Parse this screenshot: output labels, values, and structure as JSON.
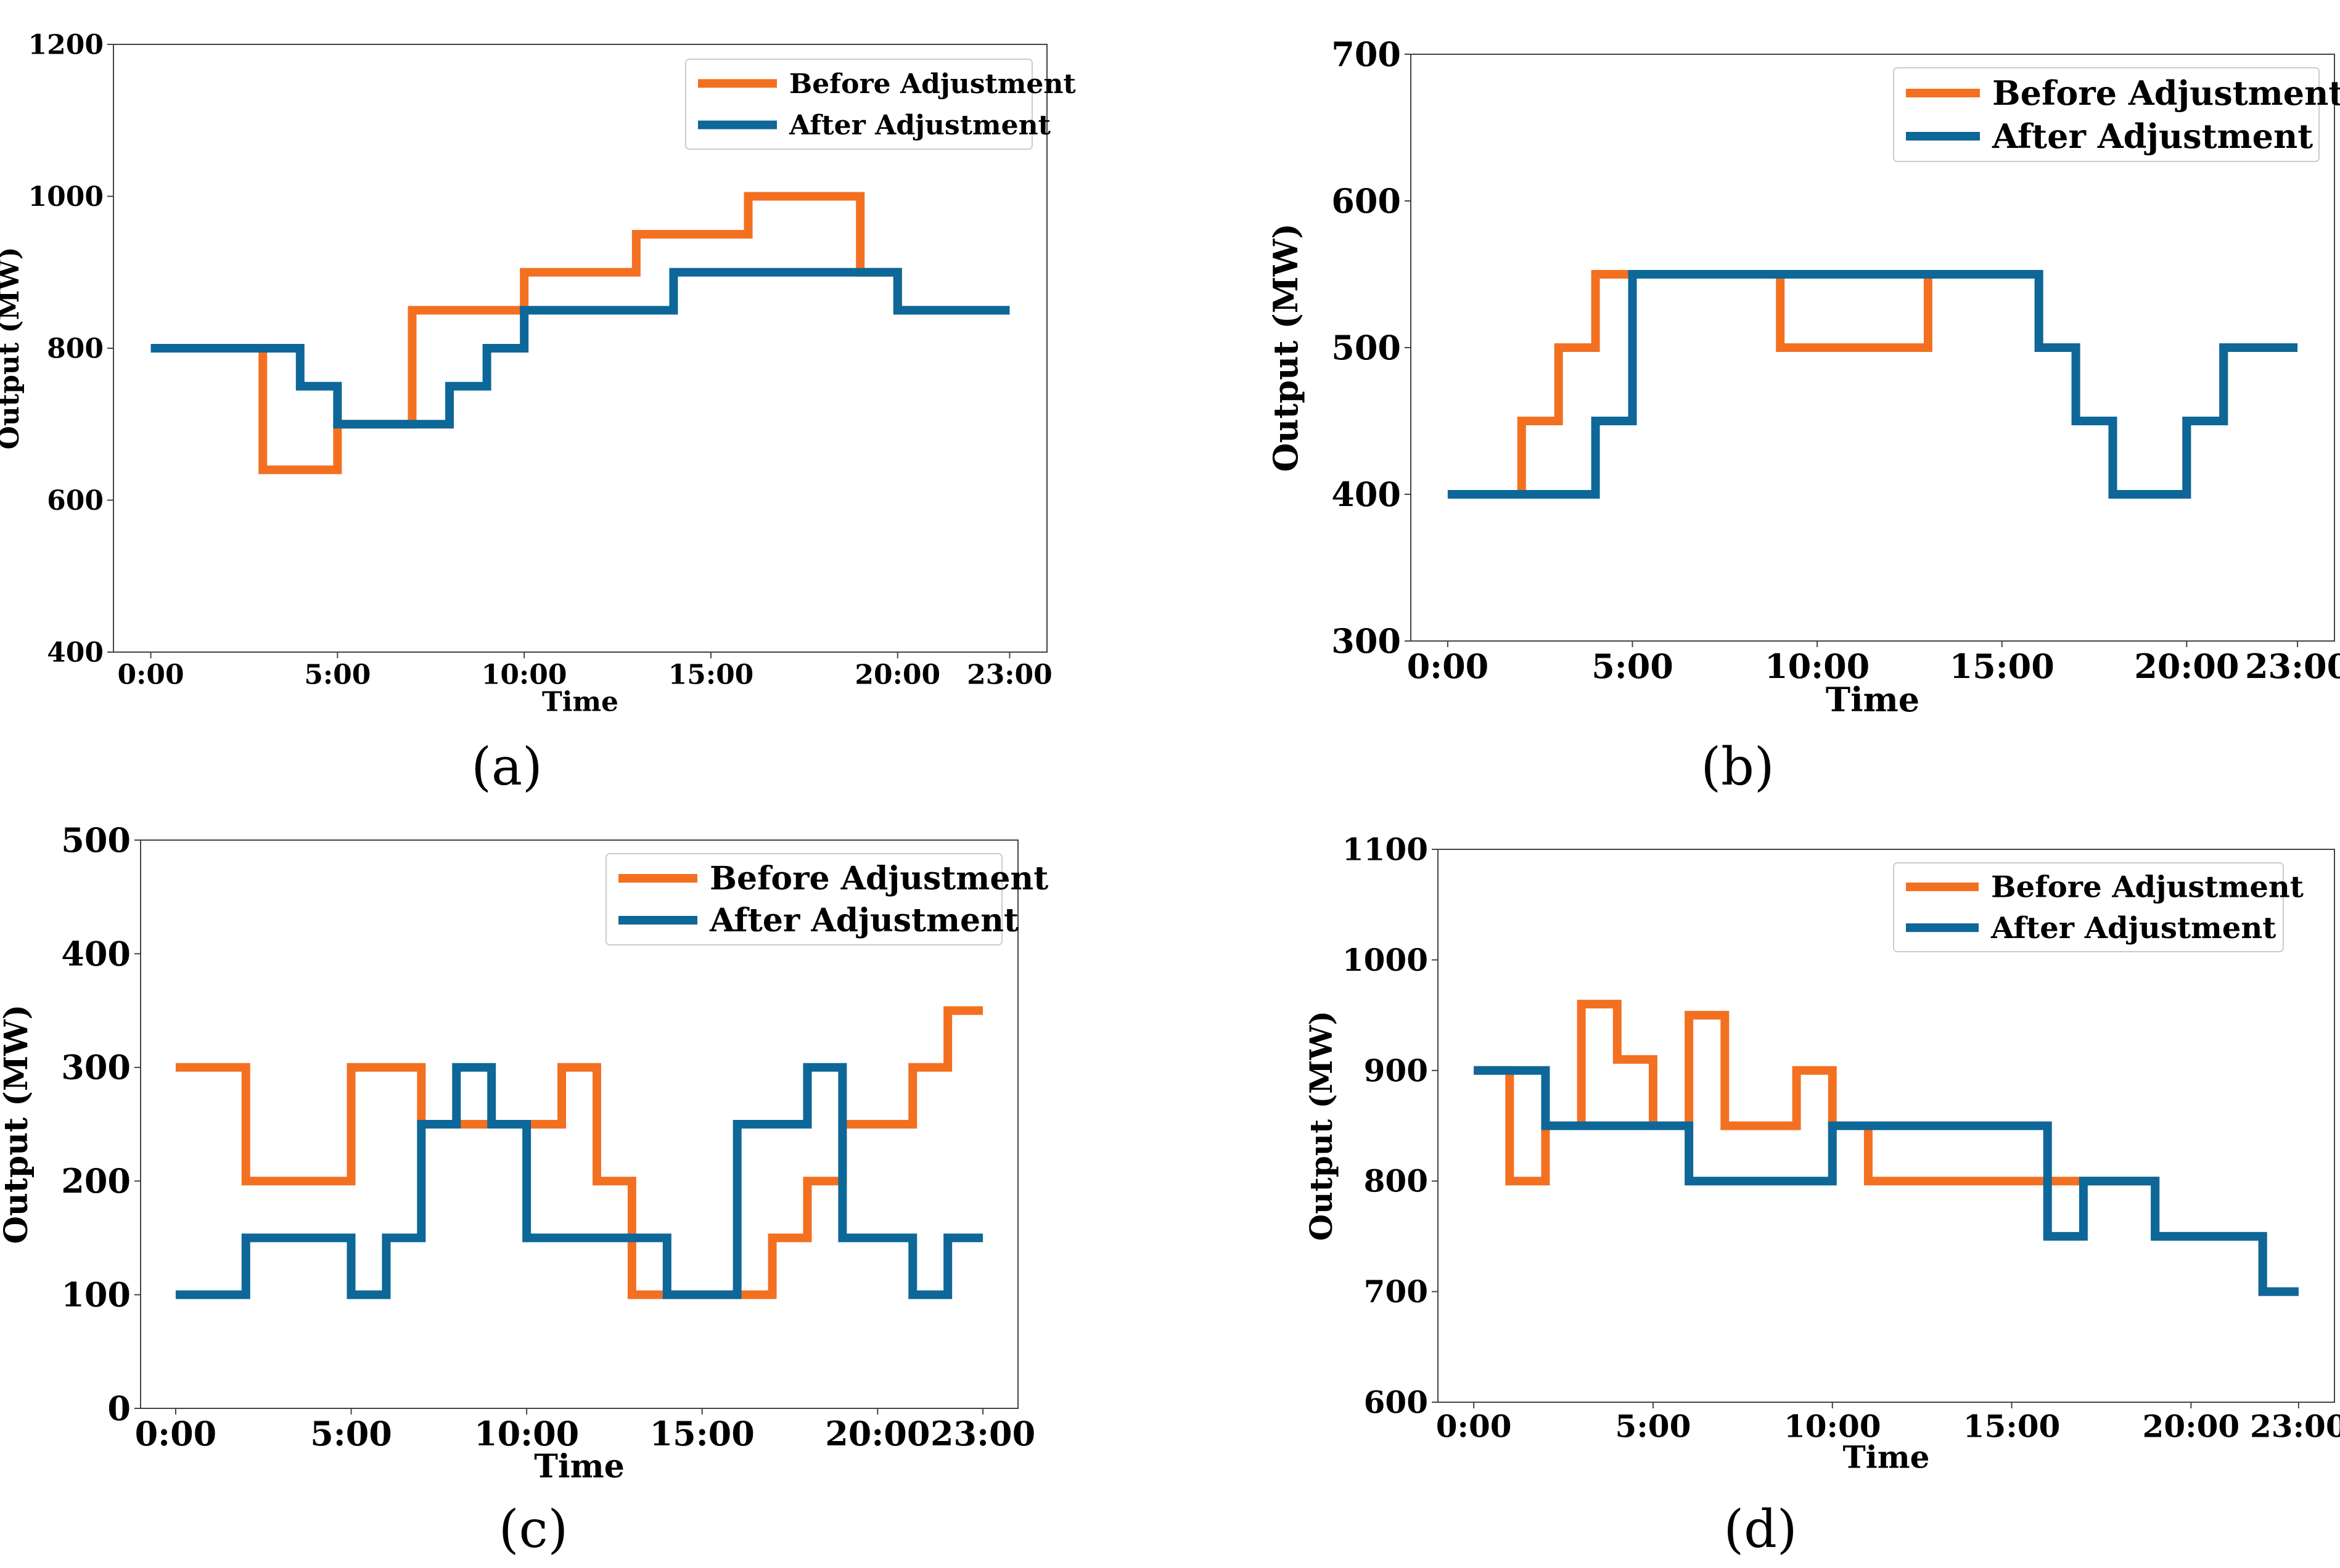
{
  "chart_data": [
    {
      "type": "line",
      "step": "post",
      "caption": "(a)",
      "xlabel": "Time",
      "ylabel": "Output (MW)",
      "ylim": [
        400,
        1200
      ],
      "yticks": [
        400,
        600,
        800,
        1000,
        1200
      ],
      "xlim": [
        -1,
        24
      ],
      "xticks": [
        0,
        5,
        10,
        15,
        20,
        23
      ],
      "xticklabels": [
        "0:00",
        "5:00",
        "10:00",
        "15:00",
        "20:00",
        "23:00"
      ],
      "grid": false,
      "legend": "top-right",
      "colors": {
        "before": "#f37021",
        "after": "#0d6798"
      },
      "series": [
        {
          "name": "Before Adjustment",
          "x": [
            0,
            1,
            2,
            3,
            4,
            5,
            6,
            7,
            8,
            9,
            10,
            11,
            12,
            13,
            14,
            15,
            16,
            17,
            18,
            19,
            20,
            21,
            22,
            23
          ],
          "values": [
            800,
            800,
            800,
            640,
            640,
            700,
            700,
            850,
            850,
            850,
            900,
            900,
            900,
            950,
            950,
            950,
            1000,
            1000,
            1000,
            900,
            850,
            850,
            850,
            850
          ]
        },
        {
          "name": "After Adjustment",
          "x": [
            0,
            1,
            2,
            3,
            4,
            5,
            6,
            7,
            8,
            9,
            10,
            11,
            12,
            13,
            14,
            15,
            16,
            17,
            18,
            19,
            20,
            21,
            22,
            23
          ],
          "values": [
            800,
            800,
            800,
            800,
            750,
            700,
            700,
            700,
            750,
            800,
            850,
            850,
            850,
            850,
            900,
            900,
            900,
            900,
            900,
            900,
            850,
            850,
            850,
            850
          ]
        }
      ]
    },
    {
      "type": "line",
      "step": "post",
      "caption": "(b)",
      "xlabel": "Time",
      "ylabel": "Output (MW)",
      "ylim": [
        300,
        700
      ],
      "yticks": [
        300,
        400,
        500,
        600,
        700
      ],
      "xlim": [
        -1,
        24
      ],
      "xticks": [
        0,
        5,
        10,
        15,
        20,
        23
      ],
      "xticklabels": [
        "0:00",
        "5:00",
        "10:00",
        "15:00",
        "20:00",
        "23:00"
      ],
      "grid": false,
      "legend": "top-right",
      "colors": {
        "before": "#f37021",
        "after": "#0d6798"
      },
      "series": [
        {
          "name": "Before Adjustment",
          "x": [
            0,
            1,
            2,
            3,
            4,
            5,
            6,
            7,
            8,
            9,
            10,
            11,
            12,
            13,
            14,
            15,
            16,
            17,
            18,
            19,
            20,
            21,
            22,
            23
          ],
          "values": [
            400,
            400,
            450,
            500,
            550,
            550,
            550,
            550,
            550,
            500,
            500,
            500,
            500,
            550,
            550,
            550,
            500,
            450,
            400,
            400,
            450,
            500,
            500,
            500
          ]
        },
        {
          "name": "After Adjustment",
          "x": [
            0,
            1,
            2,
            3,
            4,
            5,
            6,
            7,
            8,
            9,
            10,
            11,
            12,
            13,
            14,
            15,
            16,
            17,
            18,
            19,
            20,
            21,
            22,
            23
          ],
          "values": [
            400,
            400,
            400,
            400,
            450,
            550,
            550,
            550,
            550,
            550,
            550,
            550,
            550,
            550,
            550,
            550,
            500,
            450,
            400,
            400,
            450,
            500,
            500,
            500
          ]
        }
      ]
    },
    {
      "type": "line",
      "step": "post",
      "caption": "(c)",
      "xlabel": "Time",
      "ylabel": "Output (MW)",
      "ylim": [
        0,
        500
      ],
      "yticks": [
        0,
        100,
        200,
        300,
        400,
        500
      ],
      "xlim": [
        -1,
        24
      ],
      "xticks": [
        0,
        5,
        10,
        15,
        20,
        23
      ],
      "xticklabels": [
        "0:00",
        "5:00",
        "10:00",
        "15:00",
        "20:00",
        "23:00"
      ],
      "grid": false,
      "legend": "top-right",
      "colors": {
        "before": "#f37021",
        "after": "#0d6798"
      },
      "series": [
        {
          "name": "Before Adjustment",
          "x": [
            0,
            1,
            2,
            3,
            4,
            5,
            6,
            7,
            8,
            9,
            10,
            11,
            12,
            13,
            14,
            15,
            16,
            17,
            18,
            19,
            20,
            21,
            22,
            23
          ],
          "values": [
            300,
            300,
            200,
            200,
            200,
            300,
            300,
            250,
            250,
            250,
            250,
            300,
            200,
            100,
            100,
            100,
            100,
            150,
            200,
            250,
            250,
            300,
            350,
            350
          ]
        },
        {
          "name": "After Adjustment",
          "x": [
            0,
            1,
            2,
            3,
            4,
            5,
            6,
            7,
            8,
            9,
            10,
            11,
            12,
            13,
            14,
            15,
            16,
            17,
            18,
            19,
            20,
            21,
            22,
            23
          ],
          "values": [
            100,
            100,
            150,
            150,
            150,
            100,
            150,
            250,
            300,
            250,
            150,
            150,
            150,
            150,
            100,
            100,
            250,
            250,
            300,
            150,
            150,
            100,
            150,
            150
          ]
        }
      ]
    },
    {
      "type": "line",
      "step": "post",
      "caption": "(d)",
      "xlabel": "Time",
      "ylabel": "Output (MW)",
      "ylim": [
        600,
        1100
      ],
      "yticks": [
        600,
        700,
        800,
        900,
        1000,
        1100
      ],
      "xlim": [
        -1,
        24
      ],
      "xticks": [
        0,
        5,
        10,
        15,
        20,
        23
      ],
      "xticklabels": [
        "0:00",
        "5:00",
        "10:00",
        "15:00",
        "20:00",
        "23:00"
      ],
      "grid": false,
      "legend": "top-right",
      "colors": {
        "before": "#f37021",
        "after": "#0d6798"
      },
      "series": [
        {
          "name": "Before Adjustment",
          "x": [
            0,
            1,
            2,
            3,
            4,
            5,
            6,
            7,
            8,
            9,
            10,
            11,
            12,
            13,
            14,
            15,
            16,
            17,
            18,
            19,
            20,
            21,
            22,
            23
          ],
          "values": [
            900,
            800,
            850,
            960,
            910,
            850,
            950,
            850,
            850,
            900,
            850,
            800,
            800,
            800,
            800,
            800,
            800,
            800,
            800,
            750,
            750,
            750,
            700,
            700
          ]
        },
        {
          "name": "After Adjustment",
          "x": [
            0,
            1,
            2,
            3,
            4,
            5,
            6,
            7,
            8,
            9,
            10,
            11,
            12,
            13,
            14,
            15,
            16,
            17,
            18,
            19,
            20,
            21,
            22,
            23
          ],
          "values": [
            900,
            900,
            850,
            850,
            850,
            850,
            800,
            800,
            800,
            800,
            850,
            850,
            850,
            850,
            850,
            850,
            750,
            800,
            800,
            750,
            750,
            750,
            700,
            700
          ]
        }
      ]
    }
  ]
}
